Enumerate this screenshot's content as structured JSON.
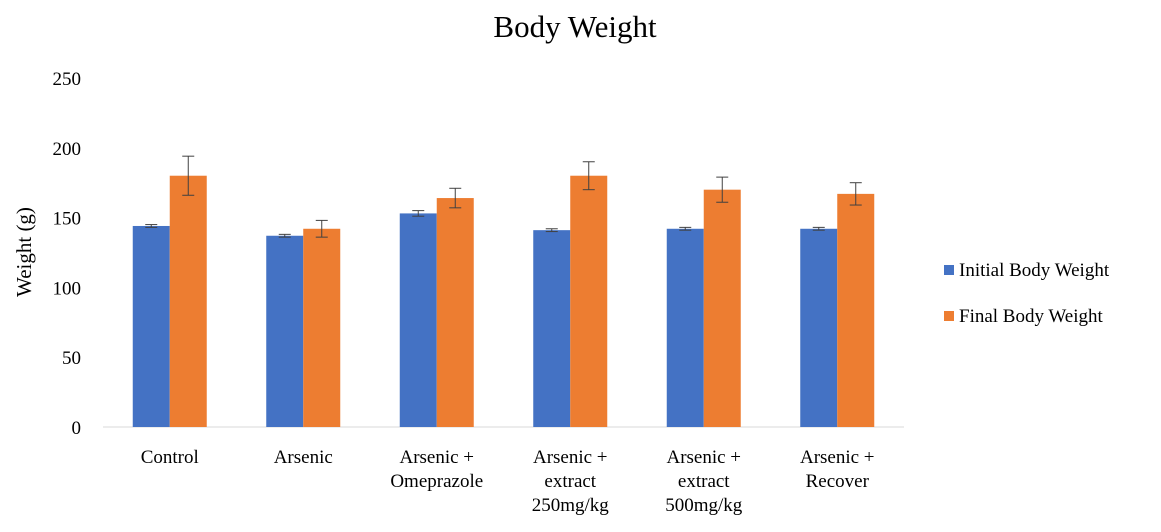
{
  "chart_data": {
    "type": "bar",
    "title": "Body Weight",
    "xlabel": "",
    "ylabel": "Weight (g)",
    "ylim": [
      0,
      250
    ],
    "yticks": [
      0,
      50,
      100,
      150,
      200,
      250
    ],
    "grid": false,
    "legend_position": "right",
    "categories": [
      [
        "Control"
      ],
      [
        "Arsenic"
      ],
      [
        "Arsenic +",
        "Omeprazole"
      ],
      [
        "Arsenic +",
        "extract",
        "250mg/kg"
      ],
      [
        "Arsenic +",
        "extract",
        "500mg/kg"
      ],
      [
        "Arsenic +",
        "Recover"
      ]
    ],
    "series": [
      {
        "name": "Initial Body Weight",
        "color": "#4472C4",
        "values": [
          144,
          137,
          153,
          141,
          142,
          142
        ],
        "errors": [
          1,
          1,
          2,
          1,
          1,
          1
        ]
      },
      {
        "name": "Final Body Weight",
        "color": "#ED7D31",
        "values": [
          180,
          142,
          164,
          180,
          170,
          167
        ],
        "errors": [
          14,
          6,
          7,
          10,
          9,
          8
        ]
      }
    ]
  }
}
